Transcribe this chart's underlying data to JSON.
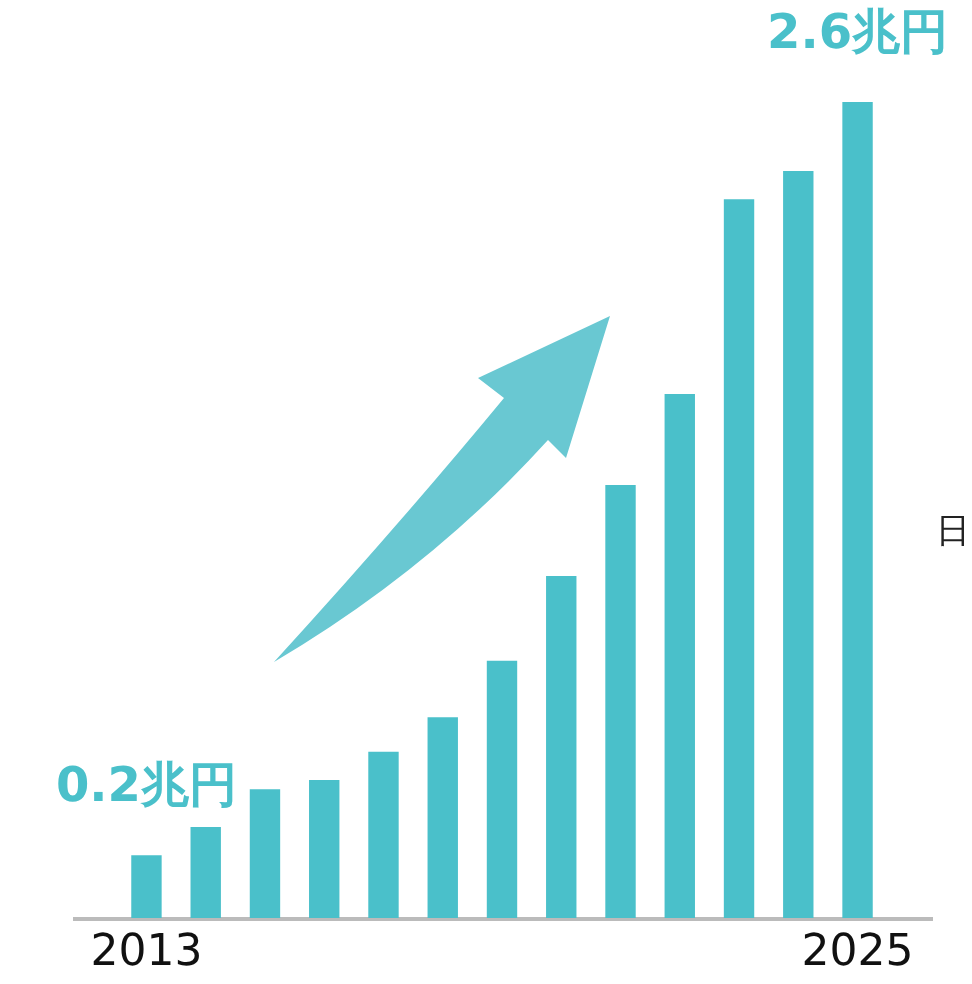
{
  "chart_data": {
    "type": "bar",
    "categories": [
      "2013",
      null,
      null,
      null,
      null,
      null,
      null,
      null,
      null,
      null,
      null,
      null,
      "2025"
    ],
    "values": [
      0.2,
      0.29,
      0.41,
      0.44,
      0.53,
      0.64,
      0.82,
      1.09,
      1.38,
      1.67,
      2.29,
      2.38,
      2.6
    ],
    "value_labels": [
      "0.2兆円",
      null,
      null,
      null,
      null,
      null,
      null,
      null,
      null,
      null,
      null,
      null,
      "2.6兆円"
    ],
    "color": "#4ac0ca",
    "annotations": [
      "日"
    ],
    "grid": false
  }
}
